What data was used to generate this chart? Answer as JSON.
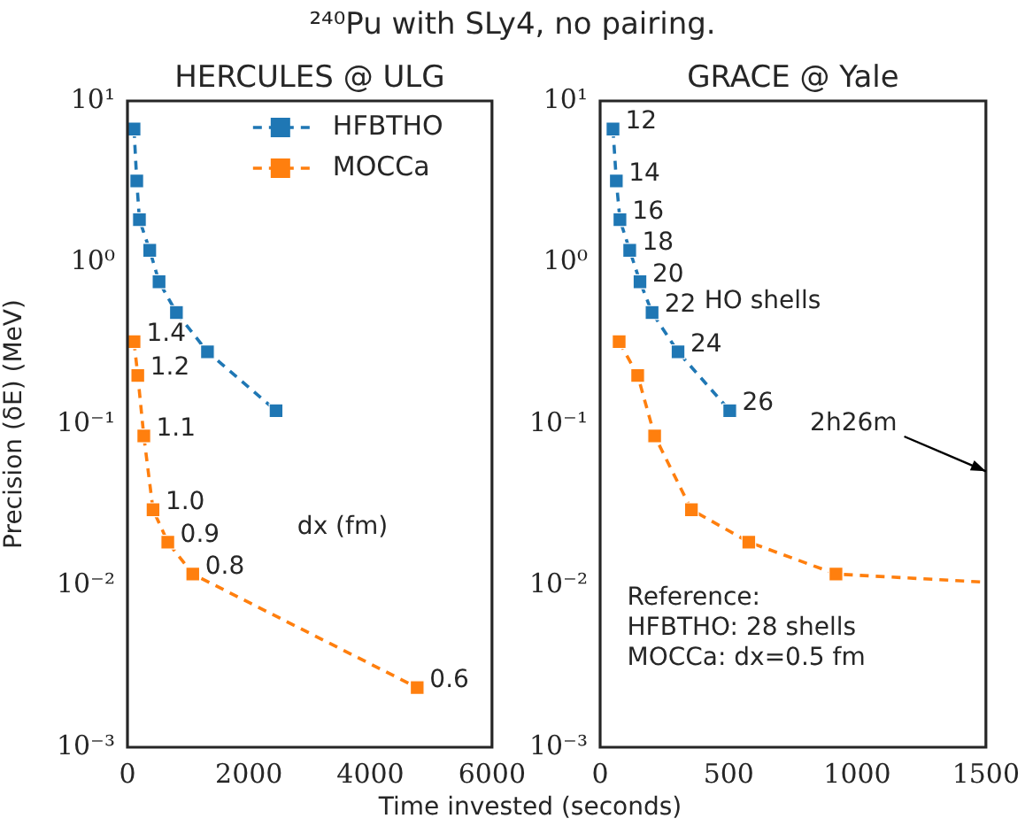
{
  "chart_data": [
    {
      "type": "line",
      "title": "²⁴⁰Pu with SLy4, no pairing.",
      "subtitle": "HERCULES @ ULG",
      "xlabel": "Time invested (seconds)",
      "ylabel": "Precision (δE) (MeV)",
      "log": "y",
      "xlim": [
        0,
        6000
      ],
      "xticks": [
        0,
        2000,
        4000,
        6000
      ],
      "ylim": [
        0.001,
        10
      ],
      "yticks": [
        {
          "value": 0.001,
          "label": "10⁻³"
        },
        {
          "value": 0.01,
          "label": "10⁻²"
        },
        {
          "value": 0.1,
          "label": "10⁻¹"
        },
        {
          "value": 1,
          "label": "10⁰"
        },
        {
          "value": 10,
          "label": "10¹"
        }
      ],
      "grid": false,
      "legend": "top right",
      "marker": "square",
      "line_style": "dashed",
      "annotations": [
        "dx (fm)",
        {
          "text": "1.4",
          "x": 108,
          "y": 0.324
        },
        {
          "text": "1.2",
          "x": 170,
          "y": 0.2
        },
        {
          "text": "1.1",
          "x": 269,
          "y": 0.0845
        },
        {
          "text": "1.0",
          "x": 421,
          "y": 0.0295
        },
        {
          "text": "0.9",
          "x": 664,
          "y": 0.0186
        },
        {
          "text": "0.8",
          "x": 1075,
          "y": 0.0118
        },
        {
          "text": "0.6",
          "x": 4769,
          "y": 0.00234
        }
      ],
      "series": [
        {
          "name": "HFBTHO",
          "color": "#1f77b4",
          "x": [
            108,
            153,
            197,
            367,
            520,
            806,
            1317,
            2446
          ],
          "values": [
            6.7,
            3.2,
            1.84,
            1.19,
            0.76,
            0.49,
            0.28,
            0.121
          ]
        },
        {
          "name": "MOCCa",
          "color": "#ff7f0e",
          "x": [
            108,
            170,
            269,
            421,
            664,
            1075,
            4769
          ],
          "values": [
            0.324,
            0.2,
            0.0845,
            0.0295,
            0.0186,
            0.0118,
            0.00234
          ]
        }
      ]
    },
    {
      "type": "line",
      "subtitle": "GRACE @ Yale",
      "log": "y",
      "xlim": [
        0,
        1500
      ],
      "xticks": [
        0,
        500,
        1000,
        1500
      ],
      "ylim": [
        0.001,
        10
      ],
      "yticks": [
        {
          "value": 0.001,
          "label": "10⁻³"
        },
        {
          "value": 0.01,
          "label": "10⁻²"
        },
        {
          "value": 0.1,
          "label": "10⁻¹"
        },
        {
          "value": 1,
          "label": "10⁰"
        },
        {
          "value": 10,
          "label": "10¹"
        }
      ],
      "grid": false,
      "marker": "square",
      "line_style": "dashed",
      "annotations": [
        "HO shells",
        "Reference:\nHFBTHO: 28 shells\nMOCCa: dx=0.5 fm",
        "2h26m",
        {
          "text": "12",
          "x": 50,
          "y": 6.7
        },
        {
          "text": "14",
          "x": 63,
          "y": 3.2
        },
        {
          "text": "16",
          "x": 77,
          "y": 1.84
        },
        {
          "text": "18",
          "x": 115,
          "y": 1.19
        },
        {
          "text": "20",
          "x": 155,
          "y": 0.76
        },
        {
          "text": "22",
          "x": 202,
          "y": 0.49
        },
        {
          "text": "24",
          "x": 303,
          "y": 0.28
        },
        {
          "text": "26",
          "x": 504,
          "y": 0.121
        }
      ],
      "series": [
        {
          "color": "#1f77b4",
          "x": [
            50,
            63,
            77,
            115,
            155,
            202,
            303,
            504
          ],
          "values": [
            6.7,
            3.2,
            1.84,
            1.19,
            0.76,
            0.49,
            0.28,
            0.121
          ]
        },
        {
          "color": "#ff7f0e",
          "x": [
            74,
            146,
            212,
            355,
            578,
            917,
            1500
          ],
          "values": [
            0.324,
            0.2,
            0.0845,
            0.0295,
            0.0186,
            0.0118,
            0.0105
          ]
        }
      ]
    }
  ]
}
